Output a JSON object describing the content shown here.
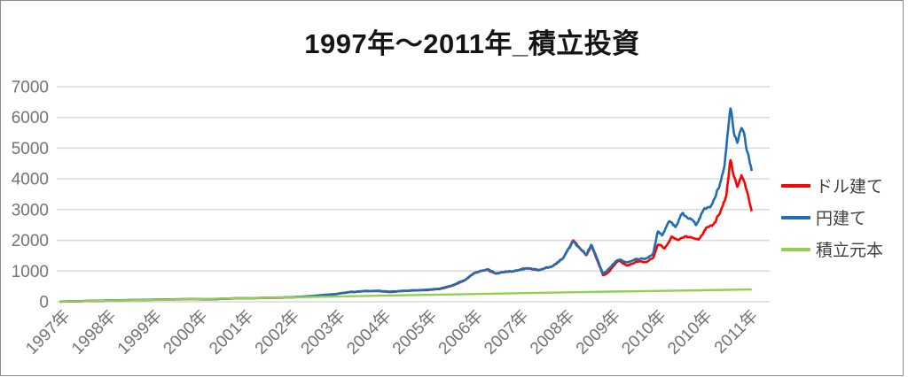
{
  "chart_data": {
    "type": "line",
    "title": "1997年～2011年_積立投資",
    "xlabel": "",
    "ylabel": "",
    "ylim": [
      0,
      7000
    ],
    "y_ticks": [
      0,
      1000,
      2000,
      3000,
      4000,
      5000,
      6000,
      7000
    ],
    "x_tick_labels": [
      "1997年",
      "1998年",
      "1999年",
      "2000年",
      "2001年",
      "2002年",
      "2003年",
      "2004年",
      "2005年",
      "2006年",
      "2007年",
      "2008年",
      "2009年",
      "2010年",
      "2010年",
      "2011年"
    ],
    "grid": "horizontal",
    "legend_position": "right",
    "colors": {
      "grid": "#d9d9d9",
      "axis_text": "#737373",
      "title_text": "#151515",
      "frame_border": "#8c8c8c",
      "background": "#ffffff"
    },
    "series": [
      {
        "name": "ドル建て",
        "color": "#fe0000",
        "keypoints": [
          [
            0,
            5
          ],
          [
            0.5,
            21
          ],
          [
            1,
            39
          ],
          [
            1.5,
            50
          ],
          [
            2,
            63
          ],
          [
            2.5,
            78
          ],
          [
            3,
            89
          ],
          [
            3.3,
            82
          ],
          [
            3.6,
            97
          ],
          [
            4,
            109
          ],
          [
            4.5,
            125
          ],
          [
            5,
            146
          ],
          [
            5.5,
            180
          ],
          [
            6,
            229
          ],
          [
            6.3,
            293
          ],
          [
            6.6,
            337
          ],
          [
            7,
            351
          ],
          [
            7.2,
            321
          ],
          [
            7.5,
            347
          ],
          [
            7.8,
            371
          ],
          [
            8,
            386
          ],
          [
            8.3,
            416
          ],
          [
            8.6,
            548
          ],
          [
            8.9,
            766
          ],
          [
            9.05,
            932
          ],
          [
            9.34,
            1048
          ],
          [
            9.5,
            866
          ],
          [
            9.7,
            905
          ],
          [
            10,
            988
          ],
          [
            10.2,
            1052
          ],
          [
            10.45,
            1000
          ],
          [
            10.7,
            1110
          ],
          [
            11,
            1460
          ],
          [
            11.2,
            2010
          ],
          [
            11.35,
            1700
          ],
          [
            11.5,
            1460
          ],
          [
            11.6,
            1760
          ],
          [
            11.75,
            1240
          ],
          [
            11.86,
            830
          ],
          [
            12,
            980
          ],
          [
            12.2,
            1290
          ],
          [
            12.4,
            1210
          ],
          [
            12.6,
            1340
          ],
          [
            12.8,
            1290
          ],
          [
            12.95,
            1430
          ],
          [
            13.05,
            1850
          ],
          [
            13.2,
            1720
          ],
          [
            13.35,
            2060
          ],
          [
            13.5,
            1950
          ],
          [
            13.65,
            2200
          ],
          [
            13.8,
            2120
          ],
          [
            13.95,
            2060
          ],
          [
            14.1,
            2360
          ],
          [
            14.25,
            2520
          ],
          [
            14.4,
            2920
          ],
          [
            14.55,
            3420
          ],
          [
            14.63,
            4600
          ],
          [
            14.7,
            4150
          ],
          [
            14.78,
            3720
          ],
          [
            14.88,
            4120
          ],
          [
            14.95,
            3920
          ],
          [
            15.02,
            3480
          ],
          [
            15.1,
            2960
          ]
        ]
      },
      {
        "name": "円建て",
        "color": "#1f6eb4",
        "keypoints": [
          [
            0,
            5
          ],
          [
            0.5,
            22
          ],
          [
            1,
            40
          ],
          [
            1.5,
            52
          ],
          [
            2,
            65
          ],
          [
            2.5,
            80
          ],
          [
            3,
            92
          ],
          [
            3.3,
            85
          ],
          [
            3.6,
            100
          ],
          [
            4,
            112
          ],
          [
            4.5,
            128
          ],
          [
            5,
            150
          ],
          [
            5.5,
            185
          ],
          [
            6,
            235
          ],
          [
            6.3,
            300
          ],
          [
            6.6,
            345
          ],
          [
            7,
            360
          ],
          [
            7.2,
            330
          ],
          [
            7.5,
            355
          ],
          [
            7.8,
            380
          ],
          [
            8,
            395
          ],
          [
            8.3,
            425
          ],
          [
            8.6,
            560
          ],
          [
            8.9,
            780
          ],
          [
            9.05,
            950
          ],
          [
            9.34,
            1060
          ],
          [
            9.5,
            880
          ],
          [
            9.7,
            920
          ],
          [
            10,
            1000
          ],
          [
            10.2,
            1060
          ],
          [
            10.45,
            1010
          ],
          [
            10.7,
            1120
          ],
          [
            11,
            1450
          ],
          [
            11.2,
            1950
          ],
          [
            11.35,
            1680
          ],
          [
            11.5,
            1480
          ],
          [
            11.6,
            1800
          ],
          [
            11.75,
            1280
          ],
          [
            11.86,
            880
          ],
          [
            12,
            1050
          ],
          [
            12.2,
            1350
          ],
          [
            12.4,
            1280
          ],
          [
            12.6,
            1430
          ],
          [
            12.8,
            1380
          ],
          [
            12.95,
            1560
          ],
          [
            13.05,
            2300
          ],
          [
            13.15,
            2150
          ],
          [
            13.3,
            2620
          ],
          [
            13.45,
            2400
          ],
          [
            13.6,
            2900
          ],
          [
            13.75,
            2700
          ],
          [
            13.9,
            2500
          ],
          [
            14.05,
            3000
          ],
          [
            14.2,
            3100
          ],
          [
            14.35,
            3700
          ],
          [
            14.5,
            4350
          ],
          [
            14.63,
            6280
          ],
          [
            14.7,
            5600
          ],
          [
            14.78,
            5150
          ],
          [
            14.88,
            5600
          ],
          [
            14.95,
            5400
          ],
          [
            15,
            4900
          ],
          [
            15.1,
            4300
          ]
        ]
      },
      {
        "name": "積立元本",
        "color": "#92d050",
        "keypoints": [
          [
            0,
            5
          ],
          [
            1,
            32
          ],
          [
            2,
            60
          ],
          [
            3,
            88
          ],
          [
            4,
            115
          ],
          [
            5,
            142
          ],
          [
            6,
            170
          ],
          [
            7,
            198
          ],
          [
            8,
            225
          ],
          [
            9,
            252
          ],
          [
            10,
            278
          ],
          [
            11,
            305
          ],
          [
            12,
            330
          ],
          [
            13,
            352
          ],
          [
            14,
            375
          ],
          [
            15.1,
            400
          ]
        ]
      }
    ]
  }
}
